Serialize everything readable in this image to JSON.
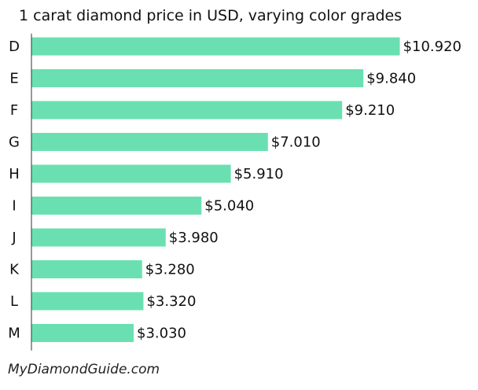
{
  "chart_data": {
    "type": "bar",
    "orientation": "horizontal",
    "title": "1 carat diamond price in USD, varying color grades",
    "xlabel": "",
    "ylabel": "",
    "categories": [
      "D",
      "E",
      "F",
      "G",
      "H",
      "I",
      "J",
      "K",
      "L",
      "M"
    ],
    "values": [
      10920,
      9840,
      9210,
      7010,
      5910,
      5040,
      3980,
      3280,
      3320,
      3030
    ],
    "data_labels": [
      "$10.920",
      "$9.840",
      "$9.210",
      "$7.010",
      "$5.910",
      "$5.040",
      "$3.980",
      "$3.280",
      "$3.320",
      "$3.030"
    ],
    "xlim": [
      0,
      11000
    ],
    "grid": false,
    "legend": "none",
    "bar_color": "#6ae0b2",
    "axis_color": "#333333"
  },
  "footer": {
    "source": "MyDiamondGuide.com"
  }
}
